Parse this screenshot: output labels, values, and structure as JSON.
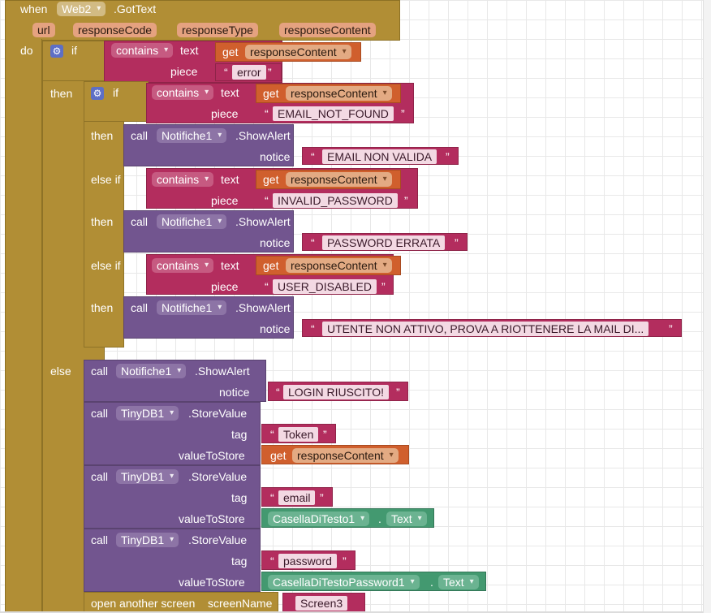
{
  "kw": {
    "when": "when",
    "do": "do",
    "if": "if",
    "then": "then",
    "else_if": "else if",
    "else": "else",
    "call": "call",
    "get": "get",
    "contains": "contains",
    "text": "text",
    "piece": "piece",
    "notice": "notice",
    "tag": "tag",
    "valueToStore": "valueToStore",
    "dot": ".",
    "open_screen": "open another screen",
    "screenName": "screenName",
    "lq": "“",
    "rq": "”"
  },
  "event": {
    "component": "Web2",
    "name": ".GotText",
    "params": [
      "url",
      "responseCode",
      "responseType",
      "responseContent"
    ]
  },
  "var_get": "responseContent",
  "error_piece": "error",
  "checks": [
    {
      "piece": "EMAIL_NOT_FOUND",
      "component": "Notifiche1",
      "method": ".ShowAlert",
      "notice": "EMAIL NON VALIDA"
    },
    {
      "piece": "INVALID_PASSWORD",
      "component": "Notifiche1",
      "method": ".ShowAlert",
      "notice": "PASSWORD ERRATA"
    },
    {
      "piece": "USER_DISABLED",
      "component": "Notifiche1",
      "method": ".ShowAlert",
      "notice": "UTENTE NON ATTIVO, PROVA A RIOTTENERE LA MAIL DI..."
    }
  ],
  "else_alert": {
    "component": "Notifiche1",
    "method": ".ShowAlert",
    "notice": "LOGIN RIUSCITO!"
  },
  "stores": [
    {
      "component": "TinyDB1",
      "method": ".StoreValue",
      "tag": "Token"
    },
    {
      "component": "TinyDB1",
      "method": ".StoreValue",
      "tag": "email",
      "value_component": "CasellaDiTesto1",
      "value_prop": "Text"
    },
    {
      "component": "TinyDB1",
      "method": ".StoreValue",
      "tag": "password",
      "value_component": "CasellaDiTestoPassword1",
      "value_prop": "Text"
    }
  ],
  "screen_name": "Screen3",
  "colors": {
    "event": "#b18e35",
    "procedure": "#72558f",
    "text": "#b32d5e",
    "variable": "#d05f2d",
    "component": "#439970",
    "mutator": "#5d6fc5"
  }
}
